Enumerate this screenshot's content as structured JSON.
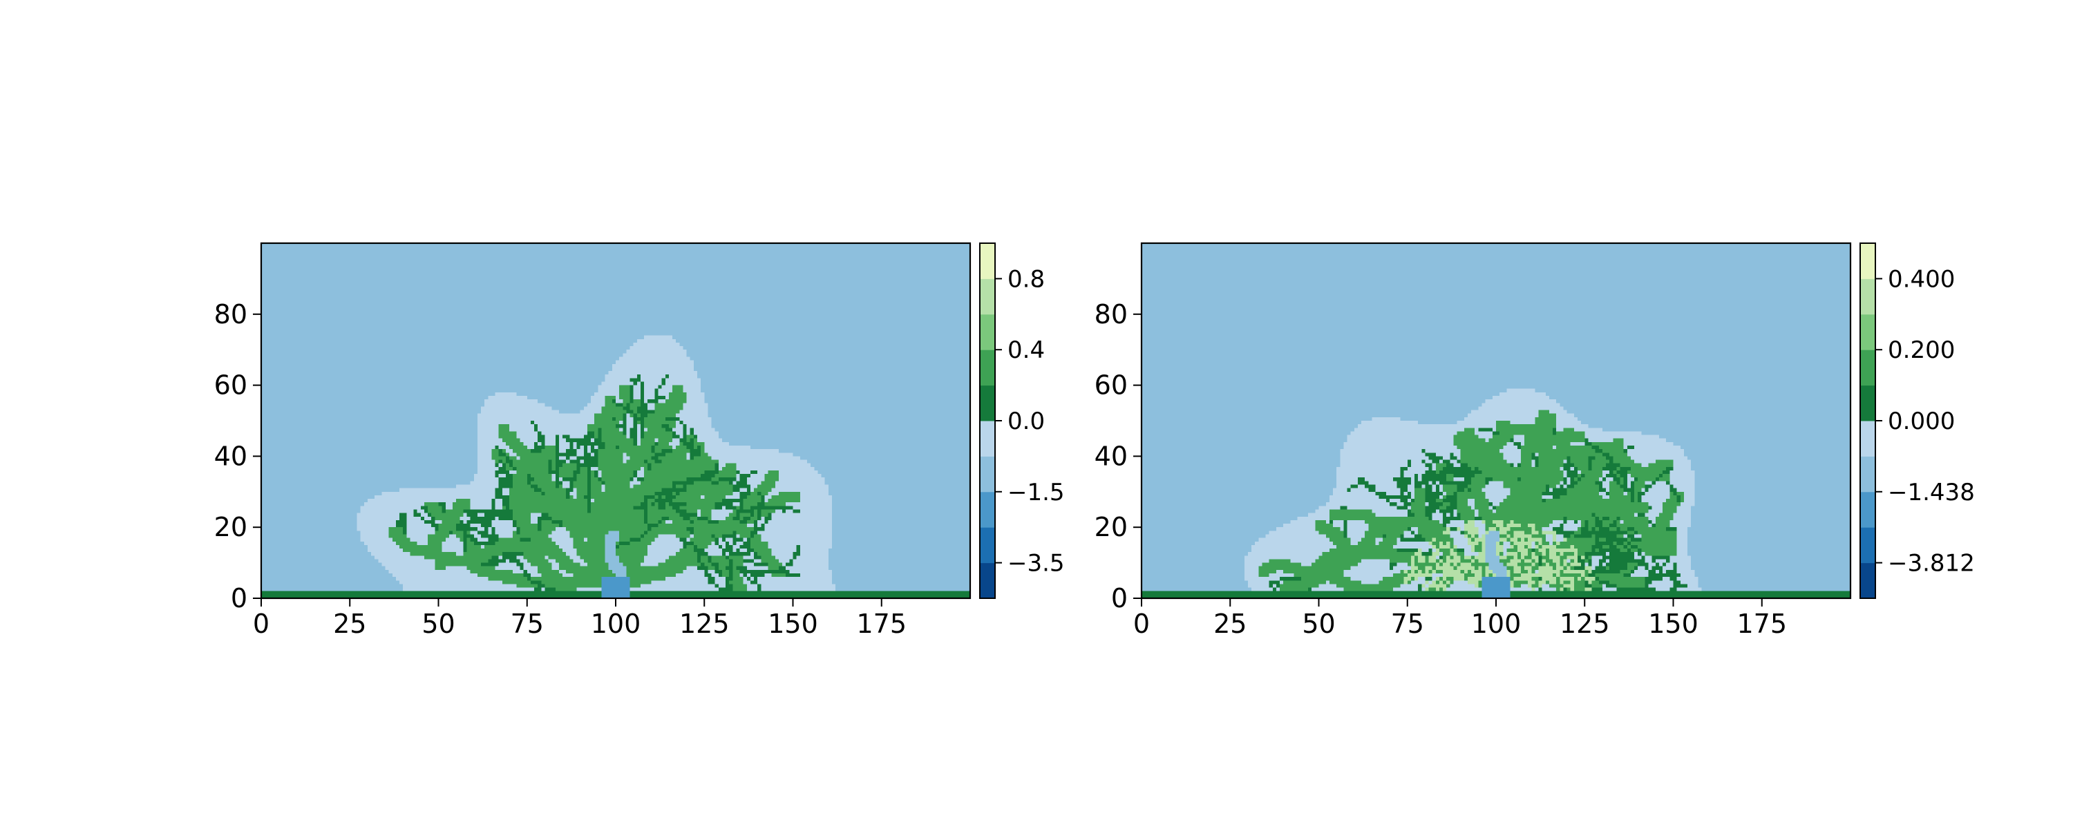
{
  "chart_data": [
    {
      "type": "heatmap",
      "title": "",
      "xlabel": "",
      "ylabel": "",
      "grid": false,
      "x_ticks": [
        0,
        25,
        50,
        75,
        100,
        125,
        150,
        175
      ],
      "x_tick_labels": [
        "0",
        "25",
        "50",
        "75",
        "100",
        "125",
        "150",
        "175"
      ],
      "y_ticks": [
        0,
        20,
        40,
        60,
        80
      ],
      "y_tick_labels": [
        "0",
        "20",
        "40",
        "60",
        "80"
      ],
      "xlim": [
        0,
        200
      ],
      "ylim": [
        0,
        100
      ],
      "grid_shape": [
        200,
        100
      ],
      "colorbar": {
        "boundaries": [
          -4.5,
          -3.5,
          -2.5,
          -1.5,
          -0.5,
          0.0,
          0.2,
          0.4,
          0.6,
          0.8,
          1.0
        ],
        "colors": [
          "#08468b",
          "#1c6fb2",
          "#4b98ca",
          "#8dbfdd",
          "#bad6eb",
          "#157a3b",
          "#3ea254",
          "#7bc87c",
          "#b5e0a8",
          "#e8f6c0"
        ],
        "ticks": [
          -3.5,
          -1.5,
          0.0,
          0.4,
          0.8
        ],
        "tick_labels": [
          "−3.5",
          "−1.5",
          "0.0",
          "0.4",
          "0.8"
        ]
      },
      "regions": {
        "background_value": -1.0,
        "bottom_strip": {
          "value": 0.1,
          "y_range": [
            0,
            2.5
          ]
        },
        "plume": {
          "center_x": 100,
          "radius_x": 64,
          "radius_y": 62,
          "value": -0.5,
          "outer_halo_value": -1.0
        },
        "channels": {
          "value": 0.1,
          "strong_value": 0.3
        },
        "main_channel_value": -1.0,
        "inlet_value": -2.0,
        "inlet_x_range": [
          96,
          104
        ]
      }
    },
    {
      "type": "heatmap",
      "title": "",
      "xlabel": "",
      "ylabel": "",
      "grid": false,
      "x_ticks": [
        0,
        25,
        50,
        75,
        100,
        125,
        150,
        175
      ],
      "x_tick_labels": [
        "0",
        "25",
        "50",
        "75",
        "100",
        "125",
        "150",
        "175"
      ],
      "y_ticks": [
        0,
        20,
        40,
        60,
        80
      ],
      "y_tick_labels": [
        "0",
        "20",
        "40",
        "60",
        "80"
      ],
      "xlim": [
        0,
        200
      ],
      "ylim": [
        0,
        100
      ],
      "grid_shape": [
        200,
        100
      ],
      "colorbar": {
        "boundaries": [
          -5.0,
          -3.812,
          -2.625,
          -1.438,
          -0.25,
          0.0,
          0.1,
          0.2,
          0.3,
          0.4,
          0.5
        ],
        "colors": [
          "#08468b",
          "#1c6fb2",
          "#4b98ca",
          "#8dbfdd",
          "#bad6eb",
          "#157a3b",
          "#3ea254",
          "#7bc87c",
          "#b5e0a8",
          "#e8f6c0"
        ],
        "ticks": [
          -3.812,
          -1.438,
          0.0,
          0.2,
          0.4
        ],
        "tick_labels": [
          "−3.812",
          "−1.438",
          "0.000",
          "0.200",
          "0.400"
        ]
      },
      "regions": {
        "background_value": -1.0,
        "bottom_strip": {
          "value": 0.05,
          "y_range": [
            0,
            2.5
          ]
        },
        "plume": {
          "center_x": 100,
          "radius_x": 64,
          "radius_y": 62,
          "value": -0.2,
          "outer_halo_value": -1.0
        },
        "channels": {
          "value": 0.05,
          "strong_value": 0.15
        },
        "near_inlet_value": 0.35,
        "main_channel_value": -1.0,
        "inlet_value": -2.0,
        "inlet_x_range": [
          96,
          104
        ]
      }
    }
  ]
}
